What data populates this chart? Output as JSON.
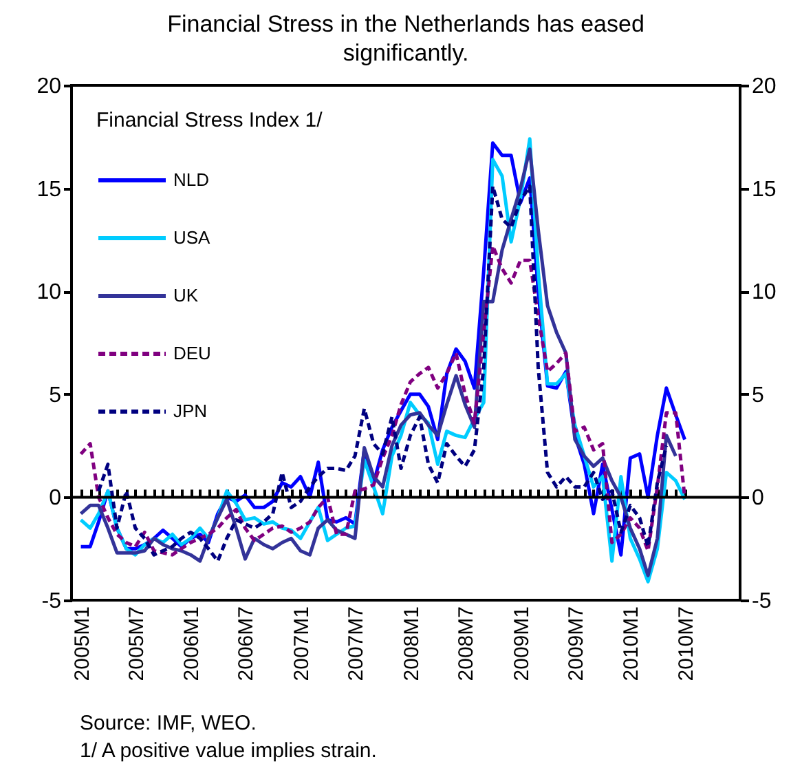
{
  "chart_data": {
    "type": "line",
    "title": "Financial Stress in the Netherlands has eased significantly.",
    "legend_title": "Financial Stress Index 1/",
    "legend": "top left",
    "annotations": [
      "Source: IMF, WEO.",
      "1/ A positive value implies strain."
    ],
    "x": [
      "2005-01",
      "2005-02",
      "2005-03",
      "2005-04",
      "2005-05",
      "2005-06",
      "2005-07",
      "2005-08",
      "2005-09",
      "2005-10",
      "2005-11",
      "2005-12",
      "2006-01",
      "2006-02",
      "2006-03",
      "2006-04",
      "2006-05",
      "2006-06",
      "2006-07",
      "2006-08",
      "2006-09",
      "2006-10",
      "2006-11",
      "2006-12",
      "2007-01",
      "2007-02",
      "2007-03",
      "2007-04",
      "2007-05",
      "2007-06",
      "2007-07",
      "2007-08",
      "2007-09",
      "2007-10",
      "2007-11",
      "2007-12",
      "2008-01",
      "2008-02",
      "2008-03",
      "2008-04",
      "2008-05",
      "2008-06",
      "2008-07",
      "2008-08",
      "2008-09",
      "2008-10",
      "2008-11",
      "2008-12",
      "2009-01",
      "2009-02",
      "2009-03",
      "2009-04",
      "2009-05",
      "2009-06",
      "2009-07",
      "2009-08",
      "2009-09",
      "2009-10",
      "2009-11",
      "2009-12",
      "2010-01",
      "2010-02",
      "2010-03",
      "2010-04",
      "2010-05",
      "2010-06",
      "2010-07"
    ],
    "xlim": [
      "2004-12",
      "2011-01"
    ],
    "xticks": [
      {
        "value": "2005-01",
        "label": "2005M1"
      },
      {
        "value": "2005-07",
        "label": "2005M7"
      },
      {
        "value": "2006-01",
        "label": "2006M1"
      },
      {
        "value": "2006-07",
        "label": "2006M7"
      },
      {
        "value": "2007-01",
        "label": "2007M1"
      },
      {
        "value": "2007-07",
        "label": "2007M7"
      },
      {
        "value": "2008-01",
        "label": "2008M1"
      },
      {
        "value": "2008-07",
        "label": "2008M7"
      },
      {
        "value": "2009-01",
        "label": "2009M1"
      },
      {
        "value": "2009-07",
        "label": "2009M7"
      },
      {
        "value": "2010-01",
        "label": "2010M1"
      },
      {
        "value": "2010-07",
        "label": "2010M7"
      }
    ],
    "ylim": [
      -5,
      20
    ],
    "yticks": [
      -5,
      0,
      5,
      10,
      15,
      20
    ],
    "y2lim": [
      -5,
      20
    ],
    "y2ticks": [
      -5,
      0,
      5,
      10,
      15,
      20
    ],
    "series": [
      {
        "name": "NLD",
        "color": "#0000ff",
        "line_style": "solid",
        "values": [
          -2.4,
          -2.4,
          -1.2,
          0.3,
          -1.5,
          -2.5,
          -2.5,
          -2.3,
          -2.0,
          -1.6,
          -2.0,
          -2.4,
          -2.0,
          -1.8,
          -2.2,
          -0.8,
          0.0,
          -0.2,
          0.1,
          -0.5,
          -0.5,
          -0.2,
          0.7,
          0.5,
          1.0,
          0.0,
          1.7,
          -1.1,
          -1.2,
          -1.0,
          -1.3,
          2.3,
          0.7,
          2.3,
          3.4,
          4.2,
          5.0,
          5.0,
          4.4,
          2.8,
          6.0,
          7.2,
          6.6,
          5.3,
          11.0,
          17.2,
          16.6,
          16.6,
          14.3,
          15.5,
          10.0,
          5.4,
          5.3,
          6.1,
          3.0,
          1.6,
          -0.8,
          1.6,
          -0.6,
          -2.8,
          1.9,
          2.1,
          0.0,
          3.0,
          5.3,
          4.0,
          2.8
        ]
      },
      {
        "name": "USA",
        "color": "#00ccff",
        "line_style": "solid",
        "values": [
          -1.1,
          -1.5,
          -0.8,
          0.3,
          -1.5,
          -2.5,
          -2.8,
          -2.3,
          -2.0,
          -2.2,
          -1.8,
          -2.3,
          -2.0,
          -1.5,
          -2.0,
          -1.0,
          0.3,
          -0.3,
          -1.1,
          -1.0,
          -1.3,
          -1.2,
          -1.5,
          -1.6,
          -2.0,
          -1.2,
          -0.5,
          -2.1,
          -1.8,
          -1.5,
          -1.4,
          1.8,
          0.5,
          -0.8,
          2.0,
          3.0,
          4.6,
          4.0,
          3.6,
          1.6,
          3.2,
          3.0,
          2.9,
          3.8,
          4.6,
          16.4,
          15.6,
          12.4,
          14.5,
          17.4,
          11.0,
          5.5,
          5.5,
          6.0,
          3.5,
          2.0,
          0.5,
          1.0,
          -3.1,
          1.0,
          -2.0,
          -3.0,
          -4.1,
          -2.5,
          1.2,
          0.8,
          -0.1
        ]
      },
      {
        "name": "UK",
        "color": "#333399",
        "line_style": "solid",
        "values": [
          -0.8,
          -0.4,
          -0.4,
          -1.5,
          -2.7,
          -2.7,
          -2.7,
          -2.6,
          -2.0,
          -2.3,
          -2.5,
          -2.6,
          -2.8,
          -3.1,
          -2.0,
          -1.0,
          -0.1,
          -1.5,
          -3.0,
          -2.0,
          -2.3,
          -2.5,
          -2.2,
          -2.0,
          -2.6,
          -2.8,
          -1.5,
          -1.1,
          -1.6,
          -1.8,
          -2.0,
          2.4,
          1.0,
          0.5,
          2.5,
          3.5,
          4.0,
          4.1,
          3.5,
          3.0,
          4.5,
          5.9,
          4.5,
          3.4,
          9.5,
          9.5,
          12.0,
          13.5,
          15.0,
          16.9,
          13.0,
          9.3,
          8.0,
          7.0,
          2.8,
          2.0,
          1.5,
          1.9,
          0.8,
          0.0,
          -1.5,
          -2.5,
          -3.8,
          -2.0,
          3.0,
          2.0,
          null
        ]
      },
      {
        "name": "DEU",
        "color": "#800080",
        "line_style": "dashed",
        "values": [
          2.1,
          2.6,
          0.0,
          -1.0,
          -1.8,
          -2.2,
          -2.4,
          -1.7,
          -2.6,
          -2.7,
          -2.8,
          -2.5,
          -2.2,
          -2.0,
          -1.8,
          -1.5,
          -1.0,
          -0.6,
          -1.5,
          -2.1,
          -1.8,
          -1.5,
          -1.4,
          -1.7,
          -1.5,
          -1.2,
          -0.5,
          0.0,
          -1.8,
          -1.8,
          0.3,
          0.4,
          0.6,
          1.9,
          3.0,
          4.5,
          5.6,
          6.0,
          6.3,
          5.3,
          6.0,
          7.0,
          5.0,
          3.6,
          8.0,
          12.2,
          11.1,
          10.4,
          11.5,
          11.5,
          8.8,
          6.1,
          6.5,
          7.0,
          3.2,
          3.4,
          2.3,
          2.6,
          -2.2,
          -1.8,
          -1.0,
          -1.5,
          -2.6,
          0.5,
          4.1,
          4.1,
          0.0
        ]
      },
      {
        "name": "JPN",
        "color": "#000080",
        "line_style": "dashed",
        "values": [
          null,
          null,
          0.3,
          1.6,
          -1.5,
          0.3,
          -1.5,
          -2.0,
          -2.8,
          -2.6,
          -2.4,
          -2.0,
          -1.7,
          -2.0,
          -2.5,
          -3.1,
          -2.0,
          -1.1,
          -1.3,
          -1.5,
          -1.2,
          -0.8,
          1.2,
          -0.5,
          -0.2,
          0.5,
          1.0,
          1.4,
          1.4,
          1.3,
          2.0,
          4.3,
          2.6,
          2.1,
          3.9,
          1.4,
          3.0,
          3.9,
          1.6,
          0.7,
          2.6,
          2.0,
          1.5,
          2.3,
          6.3,
          15.1,
          13.5,
          13.1,
          14.4,
          15.1,
          6.3,
          1.2,
          0.5,
          1.0,
          0.5,
          0.5,
          1.2,
          -0.1,
          0.3,
          -1.7,
          -0.4,
          -1.0,
          -2.4,
          0.7,
          2.5,
          null,
          null
        ]
      }
    ]
  }
}
